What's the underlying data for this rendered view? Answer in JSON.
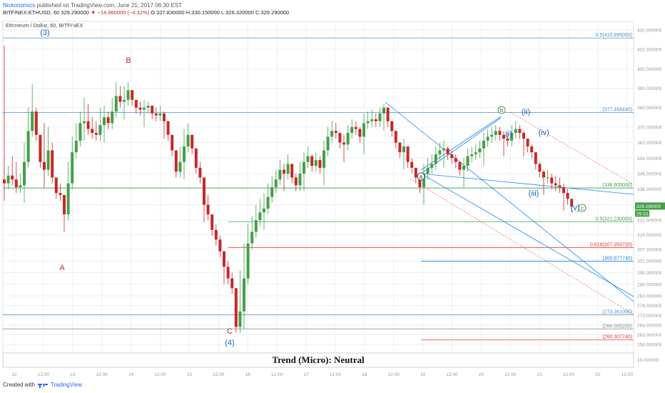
{
  "header": {
    "author": "Nickonomics",
    "published": "published on TradingView.com, June 21, 2017 06:30 EST",
    "symbol_line": "BITFINEX:ETHUSD, 60",
    "price": "329.290000",
    "change": "▼ −14.860000 (−4.32%)",
    "ohlc": "O:327.830000 H:330.150000 L:326.320000 C:329.290000"
  },
  "footer": {
    "created_with": "Created with",
    "brand": "TradingView"
  },
  "chart_data": {
    "type": "candlestick",
    "title": "Ethereum / Dollar, 60, BITFINEX",
    "annotation": "Trend (Micro): Neutral",
    "ylim": [
      256,
      422
    ],
    "y_ticks": [
      "420.000000",
      "410.000000",
      "400.000000",
      "390.000000",
      "380.000000",
      "370.000000",
      "362.000000",
      "354.000000",
      "346.000000",
      "338.000000",
      "330.000000",
      "322.000000",
      "314.500000",
      "307.000000",
      "301.000000",
      "295.000000",
      "289.000000",
      "283.000000",
      "278.000000",
      "273.000000",
      "268.000000",
      "263.000000",
      "258.000000"
    ],
    "y_tick_values": [
      420,
      410,
      400,
      390,
      380,
      370,
      362,
      354,
      346,
      338,
      330,
      322,
      314.5,
      307,
      301,
      295,
      289,
      283,
      278,
      273,
      268,
      263,
      258
    ],
    "extra_tick": "10.000000",
    "x_ticks": [
      "12",
      "12:00",
      "13",
      "12:00",
      "14",
      "12:00",
      "15",
      "12:00",
      "16",
      "12:00",
      "17",
      "12:00",
      "18",
      "12:00",
      "19",
      "12:00",
      "20",
      "12:00",
      "21",
      "12:00",
      "22",
      "12:00"
    ],
    "x_start": "2017-06-12 00:00",
    "x_step_hours": 12,
    "time_label": "29:33",
    "last_price": {
      "value": 329.29,
      "label": "329.290000"
    },
    "closes": [
      341,
      345,
      343,
      339,
      340,
      352,
      368,
      378,
      366,
      352,
      348,
      358,
      344,
      336,
      335,
      325,
      341,
      357,
      363,
      372,
      373,
      369,
      367,
      366,
      371,
      375,
      372,
      378,
      386,
      383,
      384,
      389,
      384,
      380,
      379,
      380,
      381,
      377,
      376,
      377,
      373,
      366,
      358,
      347,
      352,
      360,
      366,
      359,
      349,
      344,
      330,
      325,
      317,
      312,
      306,
      298,
      292,
      287,
      267,
      275,
      292,
      310,
      316,
      322,
      326,
      328,
      334,
      339,
      343,
      348,
      346,
      351,
      344,
      340,
      346,
      352,
      355,
      350,
      353,
      349,
      358,
      365,
      368,
      367,
      362,
      361,
      367,
      370,
      369,
      365,
      372,
      373,
      374,
      373,
      377,
      380,
      373,
      368,
      362,
      357,
      360,
      352,
      349,
      344,
      339,
      346,
      349,
      351,
      356,
      358,
      359,
      356,
      354,
      352,
      348,
      350,
      355,
      356,
      357,
      359,
      363,
      365,
      366,
      368,
      366,
      364,
      363,
      367,
      369,
      367,
      364,
      360,
      357,
      351,
      347,
      344,
      344,
      341,
      340,
      339,
      336,
      333,
      329
    ],
    "horizontal_levels": [
      {
        "value": 415.895,
        "label": "0.5(415.895000)",
        "color": "#4a90c8"
      },
      {
        "value": 377.46844,
        "label": "(377.468440)",
        "color": "#4a90c8"
      },
      {
        "value": 338.605,
        "label": "(338.605000)",
        "color": "#43a047"
      },
      {
        "value": 321.23,
        "label": "0.5(321.230000)",
        "color": "#43a047"
      },
      {
        "value": 307.95972,
        "label": "0.618(307.959720)",
        "color": "#e53935"
      },
      {
        "value": 300.87774,
        "label": "(300.877740)",
        "color": "#1e88e5"
      },
      {
        "value": 273.361,
        "label": "(273.361000)",
        "color": "#4a90c8"
      },
      {
        "value": 266.0052,
        "label": "(266.005200)",
        "color": "#888888"
      },
      {
        "value": 260.30774,
        "label": "(260.307740)",
        "color": "#e53935"
      }
    ],
    "wave_labels": [
      {
        "text": "(3)",
        "color": "#1565c0"
      },
      {
        "text": "A",
        "color": "#c62828"
      },
      {
        "text": "B",
        "color": "#c62828"
      },
      {
        "text": "C",
        "color": "#c62828"
      },
      {
        "text": "(4)",
        "color": "#1565c0"
      },
      {
        "text": "a",
        "color": "#333333",
        "circled": true
      },
      {
        "text": "b",
        "color": "#2e7d32",
        "circled": true
      },
      {
        "text": "c",
        "color": "#2e7d32",
        "circled": true
      },
      {
        "text": "(i)",
        "color": "#1565c0"
      },
      {
        "text": "(ii)",
        "color": "#1565c0"
      },
      {
        "text": "(iii)",
        "color": "#1565c0"
      },
      {
        "text": "(iv)",
        "color": "#1565c0"
      },
      {
        "text": "(v)",
        "color": "#1565c0"
      }
    ],
    "colors": {
      "up": "#43a047",
      "down": "#c62828",
      "grid": "#eef0f3",
      "axis": "#999999"
    }
  }
}
